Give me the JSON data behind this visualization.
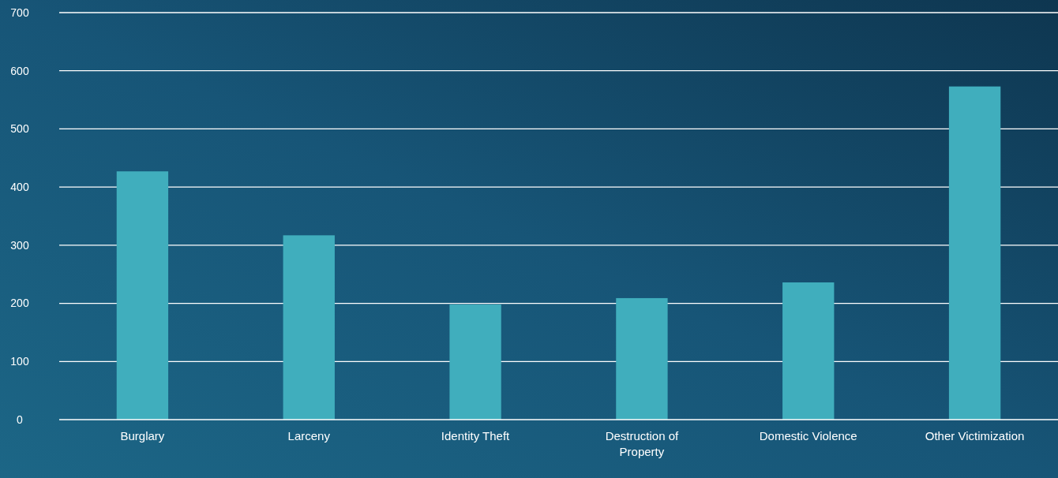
{
  "chart_data": {
    "type": "bar",
    "categories": [
      "Burglary",
      "Larceny",
      "Identity Theft",
      "Destruction of Property",
      "Domestic Violence",
      "Other Victimization"
    ],
    "values": [
      427,
      317,
      198,
      209,
      236,
      573
    ],
    "color": "#40aebd",
    "ylim": [
      0,
      700
    ],
    "yticks": [
      0,
      100,
      200,
      300,
      400,
      500,
      600,
      700
    ],
    "grid": "y"
  }
}
